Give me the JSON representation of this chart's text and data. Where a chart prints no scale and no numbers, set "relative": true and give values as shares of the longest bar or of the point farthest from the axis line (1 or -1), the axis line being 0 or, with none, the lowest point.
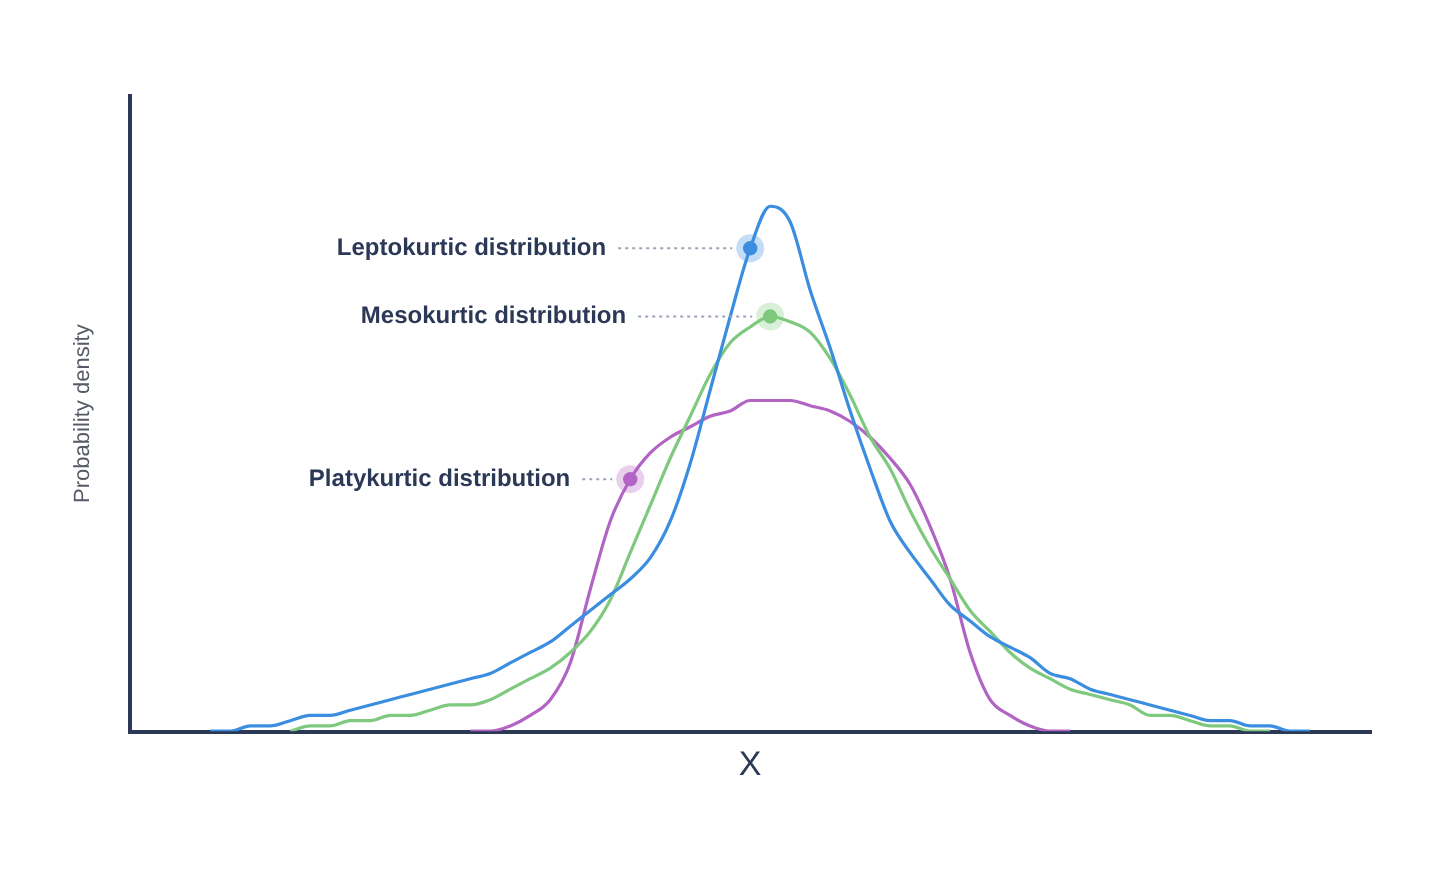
{
  "chart_data": {
    "type": "line",
    "xlabel": "X",
    "ylabel": "Probability density",
    "relative": true,
    "categories": [
      null,
      null,
      null,
      null,
      null,
      null,
      null,
      null,
      null,
      null,
      null,
      null,
      null,
      null,
      null,
      null,
      null,
      null,
      null,
      null,
      null,
      null,
      null,
      null,
      null,
      null,
      null,
      null,
      null,
      null,
      null,
      null,
      null,
      null,
      null,
      null,
      null,
      null,
      null,
      null,
      null,
      null,
      null,
      null,
      null,
      null,
      null,
      null,
      null,
      null,
      null,
      null,
      null,
      null,
      null,
      null,
      null,
      null,
      null,
      null,
      null,
      null,
      null
    ],
    "series": [
      {
        "name": "Leptokurtic distribution",
        "color": "#3b8de0",
        "values": [
          null,
          null,
          null,
          null,
          0,
          0,
          0.01,
          0.01,
          0.02,
          0.03,
          0.03,
          0.04,
          0.05,
          0.06,
          0.07,
          0.08,
          0.09,
          0.1,
          0.11,
          0.13,
          0.15,
          0.17,
          0.2,
          0.23,
          0.26,
          0.29,
          0.33,
          0.4,
          0.51,
          0.65,
          0.79,
          0.92,
          1,
          0.97,
          0.84,
          0.73,
          0.61,
          0.5,
          0.4,
          0.34,
          0.29,
          0.24,
          0.21,
          0.18,
          0.16,
          0.14,
          0.11,
          0.1,
          0.08,
          0.07,
          0.06,
          0.05,
          0.04,
          0.03,
          0.02,
          0.02,
          0.01,
          0.01,
          0,
          0,
          null,
          null,
          null
        ]
      },
      {
        "name": "Mesokurtic distribution",
        "color": "#7fc97f",
        "values": [
          null,
          null,
          null,
          null,
          null,
          null,
          null,
          null,
          0,
          0.01,
          0.01,
          0.02,
          0.02,
          0.03,
          0.03,
          0.04,
          0.05,
          0.05,
          0.06,
          0.08,
          0.1,
          0.12,
          0.15,
          0.19,
          0.25,
          0.34,
          0.43,
          0.52,
          0.6,
          0.68,
          0.74,
          0.77,
          0.79,
          0.78,
          0.76,
          0.71,
          0.64,
          0.56,
          0.5,
          0.42,
          0.35,
          0.29,
          0.23,
          0.19,
          0.15,
          0.12,
          0.1,
          0.08,
          0.07,
          0.06,
          0.05,
          0.03,
          0.03,
          0.02,
          0.01,
          0.01,
          0,
          0,
          null,
          null,
          null,
          null,
          null
        ]
      },
      {
        "name": "Platykurtic distribution",
        "color": "#b264c4",
        "values": [
          null,
          null,
          null,
          null,
          null,
          null,
          null,
          null,
          null,
          null,
          null,
          null,
          null,
          null,
          null,
          null,
          null,
          0,
          0,
          0.01,
          0.03,
          0.06,
          0.13,
          0.27,
          0.4,
          0.48,
          0.53,
          0.56,
          0.58,
          0.6,
          0.61,
          0.63,
          0.63,
          0.63,
          0.62,
          0.61,
          0.59,
          0.56,
          0.52,
          0.47,
          0.39,
          0.29,
          0.15,
          0.06,
          0.03,
          0.01,
          0,
          0,
          null,
          null,
          null,
          null,
          null,
          null,
          null,
          null,
          null,
          null,
          null,
          null,
          null,
          null,
          null
        ]
      }
    ]
  }
}
